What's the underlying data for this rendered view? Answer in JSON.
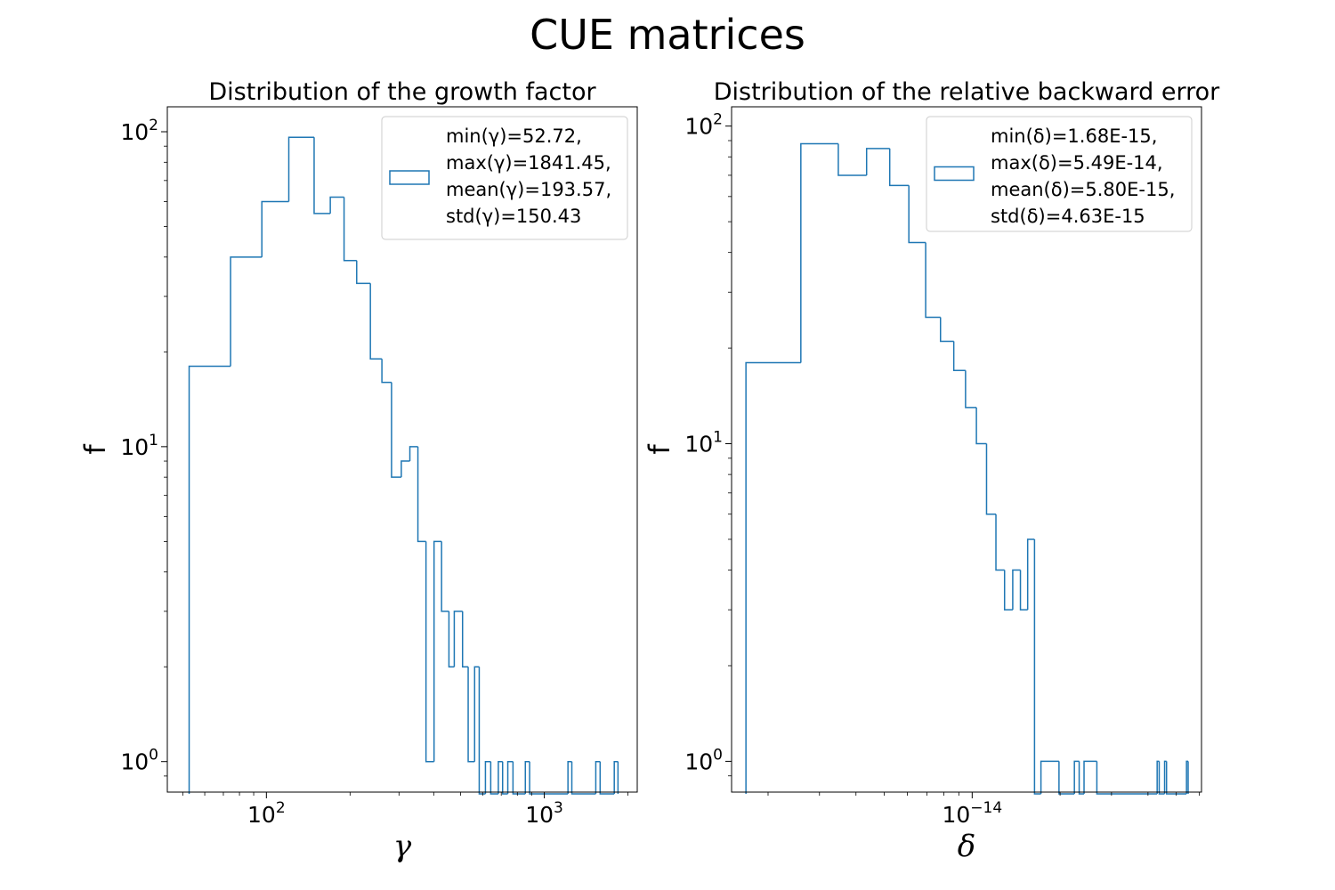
{
  "figure": {
    "title": "CUE matrices"
  },
  "colors": {
    "series": "#1f77b4",
    "axes": "#000000",
    "legend_border": "#cccccc"
  },
  "chart_data": [
    {
      "type": "histogram",
      "title": "Distribution of the growth factor",
      "xlabel": "γ",
      "ylabel": "f",
      "xscale": "log",
      "yscale": "log",
      "xlim": [
        44,
        2160
      ],
      "ylim": [
        0.8,
        120
      ],
      "xticks": [
        {
          "value": 100,
          "base": "10",
          "exp": "2"
        },
        {
          "value": 1000,
          "base": "10",
          "exp": "3"
        }
      ],
      "yticks": [
        {
          "value": 1,
          "base": "10",
          "exp": "0"
        },
        {
          "value": 10,
          "base": "10",
          "exp": "1"
        },
        {
          "value": 100,
          "base": "10",
          "exp": "2"
        }
      ],
      "grid": false,
      "legend_position": "upper right",
      "legend": [
        "min(γ)=52.72,",
        "max(γ)=1841.45,",
        "mean(γ)=193.57,",
        "std(γ)=150.43"
      ],
      "bins": [
        {
          "x0": 52.72,
          "x1": 74.3,
          "count": 18
        },
        {
          "x0": 74.3,
          "x1": 96.3,
          "count": 40
        },
        {
          "x0": 96.3,
          "x1": 120.4,
          "count": 60
        },
        {
          "x0": 120.4,
          "x1": 148.5,
          "count": 96
        },
        {
          "x0": 148.5,
          "x1": 169.8,
          "count": 55
        },
        {
          "x0": 169.8,
          "x1": 190.3,
          "count": 62
        },
        {
          "x0": 190.3,
          "x1": 211.3,
          "count": 39
        },
        {
          "x0": 211.3,
          "x1": 236.7,
          "count": 33
        },
        {
          "x0": 236.7,
          "x1": 260.4,
          "count": 19
        },
        {
          "x0": 260.4,
          "x1": 282.0,
          "count": 16
        },
        {
          "x0": 282.0,
          "x1": 305.8,
          "count": 8
        },
        {
          "x0": 305.8,
          "x1": 328.3,
          "count": 9
        },
        {
          "x0": 328.3,
          "x1": 350.9,
          "count": 10
        },
        {
          "x0": 350.9,
          "x1": 375.2,
          "count": 5
        },
        {
          "x0": 375.2,
          "x1": 401.1,
          "count": 1
        },
        {
          "x0": 401.1,
          "x1": 426.9,
          "count": 5
        },
        {
          "x0": 426.9,
          "x1": 453.8,
          "count": 3
        },
        {
          "x0": 453.8,
          "x1": 474.3,
          "count": 2
        },
        {
          "x0": 474.3,
          "x1": 508.0,
          "count": 3
        },
        {
          "x0": 508.0,
          "x1": 532.2,
          "count": 2
        },
        {
          "x0": 532.2,
          "x1": 561.4,
          "count": 1
        },
        {
          "x0": 561.4,
          "x1": 583.2,
          "count": 2
        },
        {
          "x0": 583.2,
          "x1": 614.0,
          "count": 0
        },
        {
          "x0": 614.0,
          "x1": 641.6,
          "count": 1
        },
        {
          "x0": 641.6,
          "x1": 683.3,
          "count": 0
        },
        {
          "x0": 683.3,
          "x1": 707.9,
          "count": 1
        },
        {
          "x0": 707.9,
          "x1": 739.0,
          "count": 0
        },
        {
          "x0": 739.0,
          "x1": 771.5,
          "count": 1
        },
        {
          "x0": 771.5,
          "x1": 854.7,
          "count": 0
        },
        {
          "x0": 854.7,
          "x1": 885.4,
          "count": 1
        },
        {
          "x0": 885.4,
          "x1": 1216.7,
          "count": 0
        },
        {
          "x0": 1216.7,
          "x1": 1256.3,
          "count": 1
        },
        {
          "x0": 1256.3,
          "x1": 1532.2,
          "count": 0
        },
        {
          "x0": 1532.2,
          "x1": 1588.1,
          "count": 1
        },
        {
          "x0": 1588.1,
          "x1": 1785.7,
          "count": 0
        },
        {
          "x0": 1785.7,
          "x1": 1841.45,
          "count": 1
        }
      ]
    },
    {
      "type": "histogram",
      "title": "Distribution of the relative backward error",
      "xlabel": "δ",
      "ylabel": "f",
      "xscale": "log",
      "yscale": "log",
      "xlim": [
        1.5e-15,
        6.1e-14
      ],
      "ylim": [
        0.8,
        115
      ],
      "xticks": [
        {
          "value": 1e-14,
          "base": "10",
          "exp": "−14"
        }
      ],
      "yticks": [
        {
          "value": 1,
          "base": "10",
          "exp": "0"
        },
        {
          "value": 10,
          "base": "10",
          "exp": "1"
        },
        {
          "value": 100,
          "base": "10",
          "exp": "2"
        }
      ],
      "grid": false,
      "legend_position": "upper right",
      "legend": [
        "min(δ)=1.68E-15,",
        "max(δ)=5.49E-14,",
        "mean(δ)=5.80E-15,",
        "std(δ)=4.63E-15"
      ],
      "bins": [
        {
          "x0": 1.68e-15,
          "x1": 2.59e-15,
          "count": 18
        },
        {
          "x0": 2.59e-15,
          "x1": 3.48e-15,
          "count": 88
        },
        {
          "x0": 3.48e-15,
          "x1": 4.35e-15,
          "count": 70
        },
        {
          "x0": 4.35e-15,
          "x1": 5.22e-15,
          "count": 85
        },
        {
          "x0": 5.22e-15,
          "x1": 6.07e-15,
          "count": 65
        },
        {
          "x0": 6.07e-15,
          "x1": 6.93e-15,
          "count": 43
        },
        {
          "x0": 6.93e-15,
          "x1": 7.79e-15,
          "count": 25
        },
        {
          "x0": 7.79e-15,
          "x1": 8.65e-15,
          "count": 21
        },
        {
          "x0": 8.65e-15,
          "x1": 9.49e-15,
          "count": 17
        },
        {
          "x0": 9.49e-15,
          "x1": 1.034e-14,
          "count": 13
        },
        {
          "x0": 1.034e-14,
          "x1": 1.12e-14,
          "count": 10
        },
        {
          "x0": 1.12e-14,
          "x1": 1.206e-14,
          "count": 6
        },
        {
          "x0": 1.206e-14,
          "x1": 1.291e-14,
          "count": 4
        },
        {
          "x0": 1.291e-14,
          "x1": 1.377e-14,
          "count": 3
        },
        {
          "x0": 1.377e-14,
          "x1": 1.463e-14,
          "count": 4
        },
        {
          "x0": 1.463e-14,
          "x1": 1.549e-14,
          "count": 3
        },
        {
          "x0": 1.549e-14,
          "x1": 1.635e-14,
          "count": 5
        },
        {
          "x0": 1.635e-14,
          "x1": 1.72e-14,
          "count": 0
        },
        {
          "x0": 1.72e-14,
          "x1": 1.983e-14,
          "count": 1
        },
        {
          "x0": 1.983e-14,
          "x1": 2.239e-14,
          "count": 0
        },
        {
          "x0": 2.239e-14,
          "x1": 2.325e-14,
          "count": 1
        },
        {
          "x0": 2.325e-14,
          "x1": 2.416e-14,
          "count": 0
        },
        {
          "x0": 2.416e-14,
          "x1": 2.673e-14,
          "count": 1
        },
        {
          "x0": 2.673e-14,
          "x1": 4.3e-14,
          "count": 0
        },
        {
          "x0": 4.3e-14,
          "x1": 4.37e-14,
          "count": 1
        },
        {
          "x0": 4.37e-14,
          "x1": 4.56e-14,
          "count": 0
        },
        {
          "x0": 4.56e-14,
          "x1": 4.63e-14,
          "count": 1
        },
        {
          "x0": 4.63e-14,
          "x1": 5.42e-14,
          "count": 0
        },
        {
          "x0": 5.42e-14,
          "x1": 5.49e-14,
          "count": 1
        }
      ]
    }
  ]
}
